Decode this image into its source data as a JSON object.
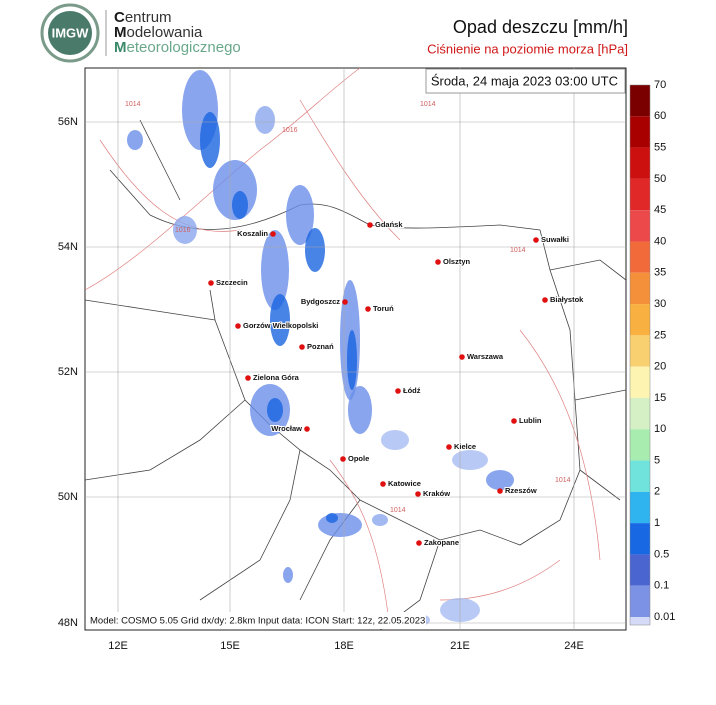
{
  "header": {
    "logo": "IMGW",
    "org": [
      "Centrum",
      "Modelowania",
      "Meteorologicznego"
    ],
    "title": "Opad deszczu [mm/h]",
    "subtitle": "Ciśnienie na poziomie morza [hPa]"
  },
  "map": {
    "timestamp": "Środa, 24 maja 2023 03:00 UTC",
    "lat_labels": [
      "56N",
      "54N",
      "52N",
      "50N",
      "48N"
    ],
    "lon_labels": [
      "12E",
      "15E",
      "18E",
      "21E",
      "24E"
    ],
    "cities": [
      "Gdańsk",
      "Suwałki",
      "Koszalin",
      "Olsztyn",
      "Szczecin",
      "Białystok",
      "Bydgoszcz",
      "Toruń",
      "Gorzów Wielkopolski",
      "Poznań",
      "Warszawa",
      "Zielona Góra",
      "Łódź",
      "Lublin",
      "Wrocław",
      "Kielce",
      "Opole",
      "Katowice",
      "Kraków",
      "Rzeszów",
      "Zakopane"
    ],
    "isobar_labels": [
      "1014",
      "1014",
      "1016",
      "1016",
      "1014",
      "1014",
      "1014"
    ],
    "footer": "Model: COSMO 5.05  Grid dx/dy: 2.8km  Input data: ICON  Start: 12z, 22.05.2023"
  },
  "colorbar": {
    "labels": [
      "70",
      "60",
      "55",
      "50",
      "45",
      "40",
      "35",
      "30",
      "25",
      "20",
      "15",
      "10",
      "5",
      "2",
      "1",
      "0.5",
      "0.1",
      "0.01"
    ]
  }
}
